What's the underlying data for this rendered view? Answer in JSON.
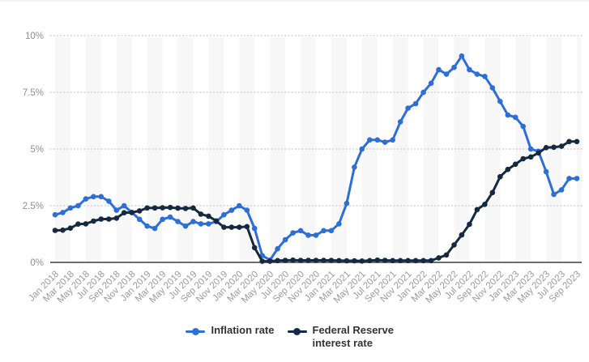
{
  "colors": {
    "inflation_blue": "#2d6ed7",
    "fed_navy": "#152940",
    "plot_band": "#f7f7f8",
    "grid_dotted": "#c9c9c9",
    "zero_axis_line": "#3d3d3d",
    "tick_text": "#9a9a9a",
    "legend_text": "#333333"
  },
  "chart_data": {
    "type": "line",
    "title": "",
    "xlabel": "",
    "ylabel": "",
    "ylim": [
      0,
      10
    ],
    "yticks": [
      0,
      2.5,
      5,
      7.5,
      10
    ],
    "ytick_labels": [
      "0%",
      "2.5%",
      "5%",
      "7.5%",
      "10%"
    ],
    "x_tick_every": 2,
    "grid": "horizontal-dotted",
    "plot_bands": "alternating-vertical-2-month",
    "legend_position": "bottom-center",
    "x": [
      "Jan 2018",
      "Feb 2018",
      "Mar 2018",
      "Apr 2018",
      "May 2018",
      "Jun 2018",
      "Jul 2018",
      "Aug 2018",
      "Sep 2018",
      "Oct 2018",
      "Nov 2018",
      "Dec 2018",
      "Jan 2019",
      "Feb 2019",
      "Mar 2019",
      "Apr 2019",
      "May 2019",
      "Jun 2019",
      "Jul 2019",
      "Aug 2019",
      "Sep 2019",
      "Oct 2019",
      "Nov 2019",
      "Dec 2019",
      "Jan 2020",
      "Feb 2020",
      "Mar 2020",
      "Apr 2020",
      "May 2020",
      "Jun 2020",
      "Jul 2020",
      "Aug 2020",
      "Sep 2020",
      "Oct 2020",
      "Nov 2020",
      "Dec 2020",
      "Jan 2021",
      "Feb 2021",
      "Mar 2021",
      "Apr 2021",
      "May 2021",
      "Jun 2021",
      "Jul 2021",
      "Aug 2021",
      "Sep 2021",
      "Oct 2021",
      "Nov 2021",
      "Dec 2021",
      "Jan 2022",
      "Feb 2022",
      "Mar 2022",
      "Apr 2022",
      "May 2022",
      "Jun 2022",
      "Jul 2022",
      "Aug 2022",
      "Sep 2022",
      "Oct 2022",
      "Nov 2022",
      "Dec 2022",
      "Jan 2023",
      "Feb 2023",
      "Mar 2023",
      "Apr 2023",
      "May 2023",
      "Jun 2023",
      "Jul 2023",
      "Aug 2023",
      "Sep 2023"
    ],
    "series": [
      {
        "name": "Inflation rate",
        "color": "#2d6ed7",
        "values": [
          2.1,
          2.2,
          2.4,
          2.5,
          2.8,
          2.9,
          2.9,
          2.7,
          2.3,
          2.5,
          2.2,
          1.9,
          1.6,
          1.5,
          1.9,
          2.0,
          1.8,
          1.6,
          1.8,
          1.7,
          1.7,
          1.8,
          2.1,
          2.3,
          2.5,
          2.3,
          1.5,
          0.3,
          0.1,
          0.6,
          1.0,
          1.3,
          1.4,
          1.2,
          1.2,
          1.4,
          1.4,
          1.7,
          2.6,
          4.2,
          5.0,
          5.4,
          5.4,
          5.3,
          5.4,
          6.2,
          6.8,
          7.0,
          7.5,
          7.9,
          8.5,
          8.3,
          8.6,
          9.1,
          8.5,
          8.3,
          8.2,
          7.7,
          7.1,
          6.5,
          6.4,
          6.0,
          5.0,
          4.9,
          4.0,
          3.0,
          3.2,
          3.7,
          3.7
        ]
      },
      {
        "name": "Federal Reserve interest rate",
        "color": "#152940",
        "values": [
          1.41,
          1.42,
          1.51,
          1.69,
          1.7,
          1.82,
          1.91,
          1.91,
          1.95,
          2.19,
          2.2,
          2.27,
          2.4,
          2.4,
          2.41,
          2.42,
          2.39,
          2.38,
          2.4,
          2.13,
          2.04,
          1.83,
          1.55,
          1.55,
          1.55,
          1.58,
          0.65,
          0.05,
          0.05,
          0.08,
          0.09,
          0.1,
          0.09,
          0.09,
          0.09,
          0.09,
          0.09,
          0.08,
          0.07,
          0.07,
          0.06,
          0.08,
          0.1,
          0.09,
          0.08,
          0.08,
          0.08,
          0.08,
          0.08,
          0.08,
          0.2,
          0.33,
          0.77,
          1.21,
          1.68,
          2.33,
          2.56,
          3.08,
          3.78,
          4.1,
          4.33,
          4.57,
          4.65,
          4.83,
          5.06,
          5.08,
          5.12,
          5.33,
          5.33
        ]
      }
    ]
  },
  "legend": {
    "items": [
      {
        "label": "Inflation rate",
        "color": "#2d6ed7"
      },
      {
        "label": "Federal Reserve interest rate",
        "color": "#152940"
      }
    ]
  }
}
